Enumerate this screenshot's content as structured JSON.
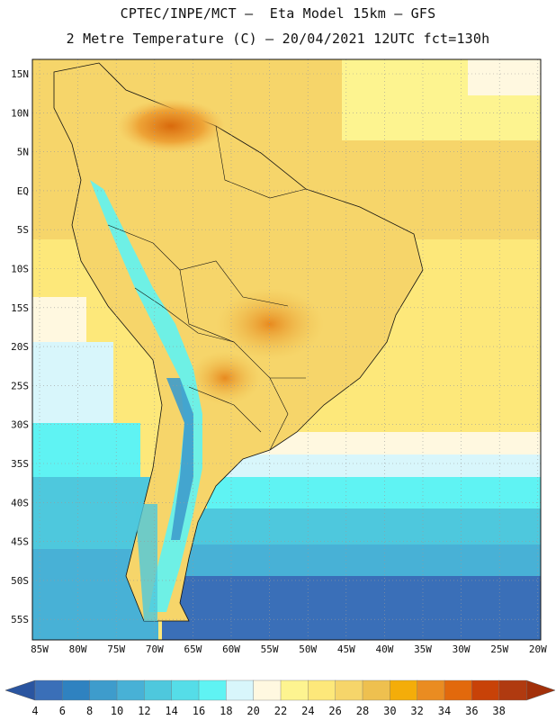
{
  "header": {
    "line1": "CPTEC/INPE/MCT –  Eta Model 15km – GFS",
    "line2": "2 Metre Temperature (C) – 20/04/2021 12UTC fct=130h"
  },
  "map": {
    "lat_labels": [
      "15N",
      "10N",
      "5N",
      "EQ",
      "5S",
      "10S",
      "15S",
      "20S",
      "25S",
      "30S",
      "35S",
      "40S",
      "45S",
      "50S",
      "55S"
    ],
    "lon_labels": [
      "85W",
      "80W",
      "75W",
      "70W",
      "65W",
      "60W",
      "55W",
      "50W",
      "45W",
      "40W",
      "35W",
      "30W",
      "25W",
      "20W"
    ]
  },
  "colorbar": {
    "labels": [
      "4",
      "6",
      "8",
      "10",
      "12",
      "14",
      "16",
      "18",
      "20",
      "22",
      "24",
      "26",
      "28",
      "30",
      "32",
      "34",
      "36",
      "38"
    ],
    "colors": [
      "#3a6fb8",
      "#2f82c0",
      "#3e9ccc",
      "#48b1d6",
      "#4ec8dd",
      "#55dde8",
      "#5ff3f3",
      "#d8f6fb",
      "#fff8e0",
      "#fdf490",
      "#fde87a",
      "#f6d56a",
      "#eec04f",
      "#f4ad09",
      "#ea8c21",
      "#e2690c",
      "#c84208",
      "#b03a10"
    ]
  }
}
